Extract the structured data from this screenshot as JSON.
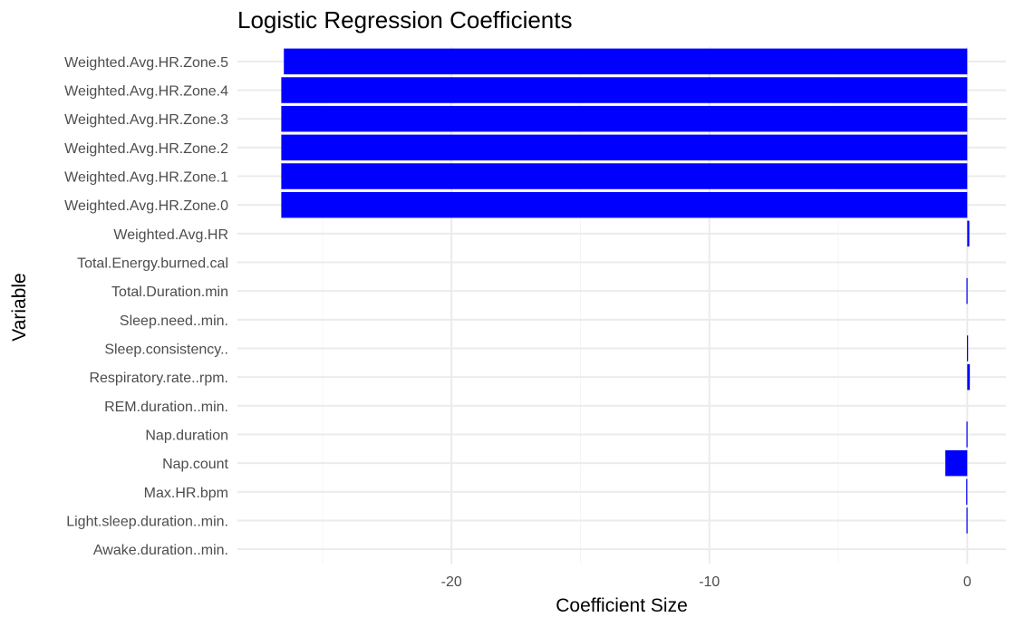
{
  "chart_data": {
    "type": "bar",
    "orientation": "horizontal",
    "title": "Logistic Regression Coefficients",
    "xlabel": "Coefficient Size",
    "ylabel": "Variable",
    "categories": [
      "Weighted.Avg.HR.Zone.5",
      "Weighted.Avg.HR.Zone.4",
      "Weighted.Avg.HR.Zone.3",
      "Weighted.Avg.HR.Zone.2",
      "Weighted.Avg.HR.Zone.1",
      "Weighted.Avg.HR.Zone.0",
      "Weighted.Avg.HR",
      "Total.Energy.burned.cal",
      "Total.Duration.min",
      "Sleep.need..min.",
      "Sleep.consistency..",
      "Respiratory.rate..rpm.",
      "REM.duration..min.",
      "Nap.duration",
      "Nap.count",
      "Max.HR.bpm",
      "Light.sleep.duration..min.",
      "Awake.duration..min."
    ],
    "values": [
      -26.5,
      -26.6,
      -26.6,
      -26.6,
      -26.6,
      -26.6,
      0.08,
      0.0,
      -0.03,
      0.0,
      -0.01,
      0.1,
      0.0,
      -0.03,
      -0.85,
      -0.04,
      -0.03,
      0.0
    ],
    "xlim": [
      -28.3,
      1.5
    ],
    "xticks": [
      -20,
      -10,
      0
    ],
    "xtick_labels": [
      "-20",
      "-10",
      "0"
    ],
    "grid": true,
    "legend": "none",
    "colors": {
      "bar": "#0000ff",
      "grid_major": "#ebebeb",
      "grid_minor": "#f5f5f5",
      "tick_text": "#4d4d4d"
    }
  }
}
